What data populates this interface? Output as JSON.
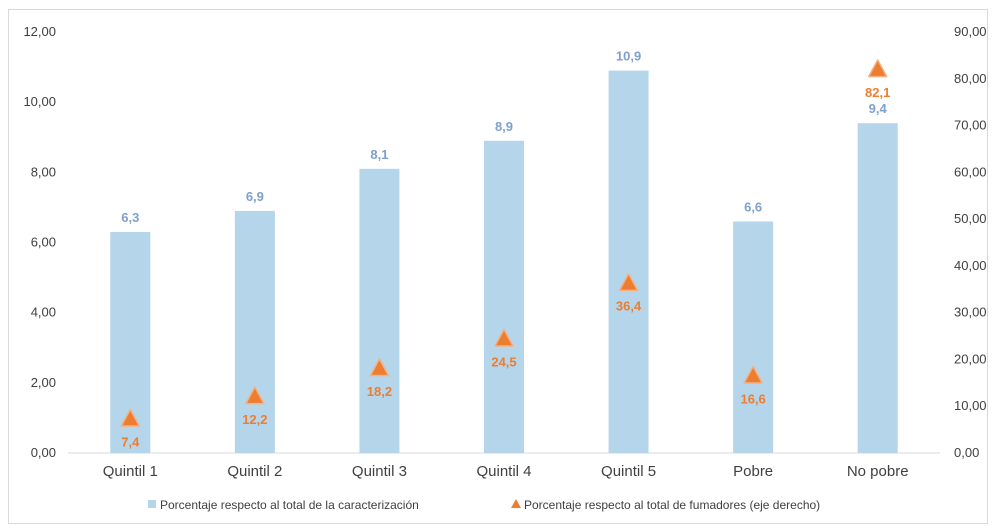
{
  "chart_data": {
    "type": "bar",
    "categories": [
      "Quintil 1",
      "Quintil 2",
      "Quintil 3",
      "Quintil 4",
      "Quintil 5",
      "Pobre",
      "No pobre"
    ],
    "series": [
      {
        "name": "Porcentaje respecto al total de la caracterización",
        "type": "bar",
        "axis": "left",
        "color": "#b4d5ea",
        "values": [
          6.3,
          6.9,
          8.1,
          8.9,
          10.9,
          6.6,
          9.4
        ],
        "labels": [
          "6,3",
          "6,9",
          "8,1",
          "8,9",
          "10,9",
          "6,6",
          "9,4"
        ]
      },
      {
        "name": "Porcentaje respecto al total de fumadores (eje derecho)",
        "type": "scatter",
        "marker": "triangle",
        "axis": "right",
        "color": "#ed7d31",
        "values": [
          7.4,
          12.2,
          18.2,
          24.5,
          36.4,
          16.6,
          82.1
        ],
        "labels": [
          "7,4",
          "12,2",
          "18,2",
          "24,5",
          "36,4",
          "16,6",
          "82,1"
        ]
      }
    ],
    "ylim_left": [
      0,
      12
    ],
    "ylim_right": [
      0,
      90
    ],
    "yticks_left": [
      "0,00",
      "2,00",
      "4,00",
      "6,00",
      "8,00",
      "10,00",
      "12,00"
    ],
    "yticks_right": [
      "0,00",
      "10,00",
      "20,00",
      "30,00",
      "40,00",
      "50,00",
      "60,00",
      "70,00",
      "80,00",
      "90,00"
    ],
    "title": "",
    "xlabel": "",
    "ylabel": "",
    "grid": false,
    "legend_position": "bottom"
  }
}
